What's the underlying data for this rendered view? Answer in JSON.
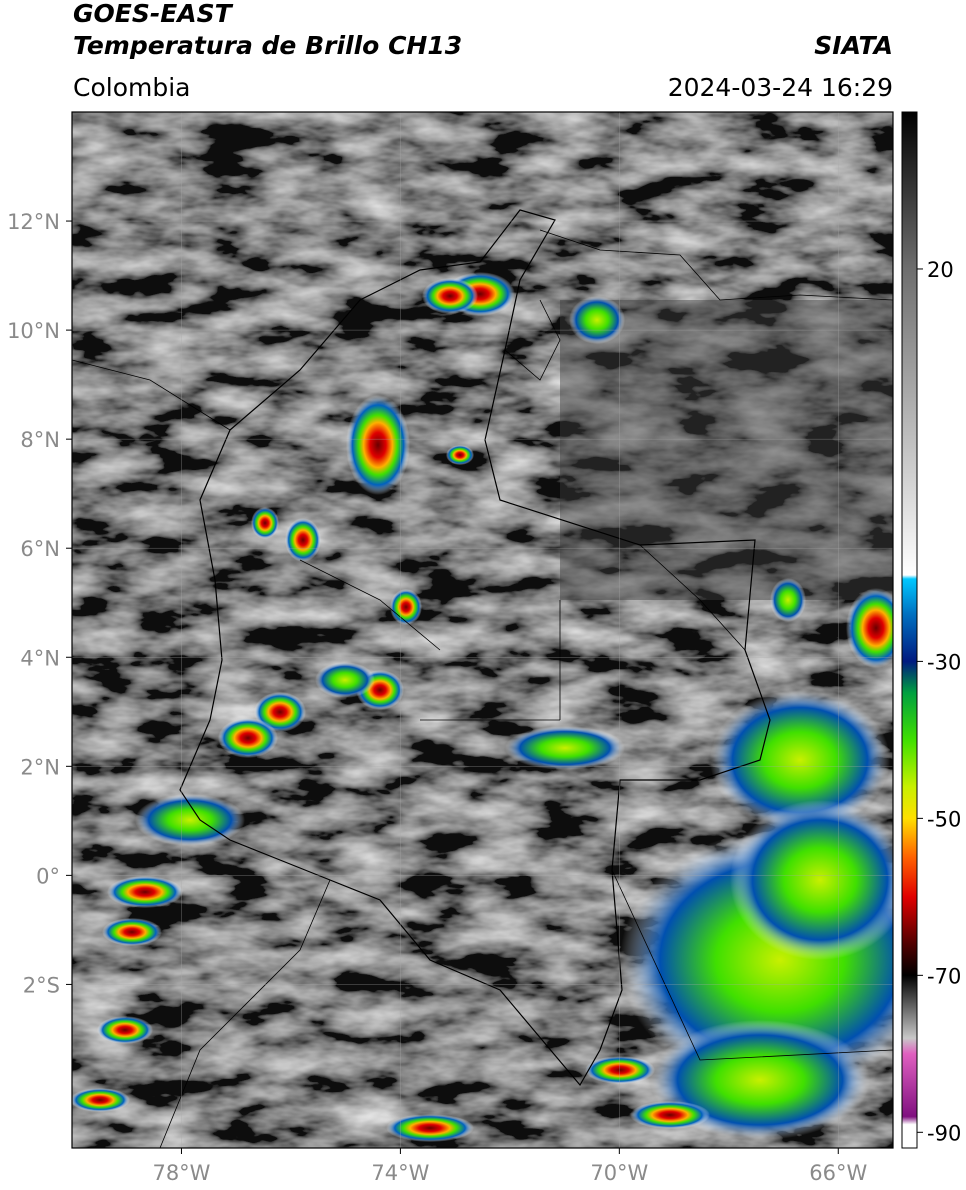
{
  "header": {
    "title": "GOES-EAST",
    "subtitle": "Temperatura de Brillo CH13",
    "region": "Colombia",
    "source": "SIATA",
    "datetime": "2024-03-24 16:29"
  },
  "map": {
    "lon_range": [
      -80,
      -65
    ],
    "lat_range": [
      -5,
      14
    ],
    "lon_ticks": [
      {
        "value": -78,
        "label": "78°W"
      },
      {
        "value": -74,
        "label": "74°W"
      },
      {
        "value": -70,
        "label": "70°W"
      },
      {
        "value": -66,
        "label": "66°W"
      }
    ],
    "lat_ticks": [
      {
        "value": 12,
        "label": "12°N"
      },
      {
        "value": 10,
        "label": "10°N"
      },
      {
        "value": 8,
        "label": "8°N"
      },
      {
        "value": 6,
        "label": "6°N"
      },
      {
        "value": 4,
        "label": "4°N"
      },
      {
        "value": 2,
        "label": "2°N"
      },
      {
        "value": 0,
        "label": "0°"
      },
      {
        "value": -2,
        "label": "2°S"
      }
    ]
  },
  "colorbar": {
    "range": [
      -92,
      40
    ],
    "ticks": [
      20,
      -30,
      -50,
      -70,
      -90
    ],
    "colormap": [
      {
        "value": 40,
        "color": "#000000"
      },
      {
        "value": 20,
        "color": "#6e6e6e"
      },
      {
        "value": -19,
        "color": "#ffffff"
      },
      {
        "value": -19.5,
        "color": "#00c8ff"
      },
      {
        "value": -24,
        "color": "#0070c0"
      },
      {
        "value": -30,
        "color": "#001a80"
      },
      {
        "value": -34,
        "color": "#00a040"
      },
      {
        "value": -40,
        "color": "#40e000"
      },
      {
        "value": -46,
        "color": "#c8f000"
      },
      {
        "value": -50,
        "color": "#ffe000"
      },
      {
        "value": -55,
        "color": "#ff6000"
      },
      {
        "value": -60,
        "color": "#e00000"
      },
      {
        "value": -66,
        "color": "#500000"
      },
      {
        "value": -70,
        "color": "#000000"
      },
      {
        "value": -78,
        "color": "#c8c8c8"
      },
      {
        "value": -80,
        "color": "#e060c0"
      },
      {
        "value": -88,
        "color": "#801080"
      },
      {
        "value": -89,
        "color": "#ffffff"
      }
    ]
  }
}
